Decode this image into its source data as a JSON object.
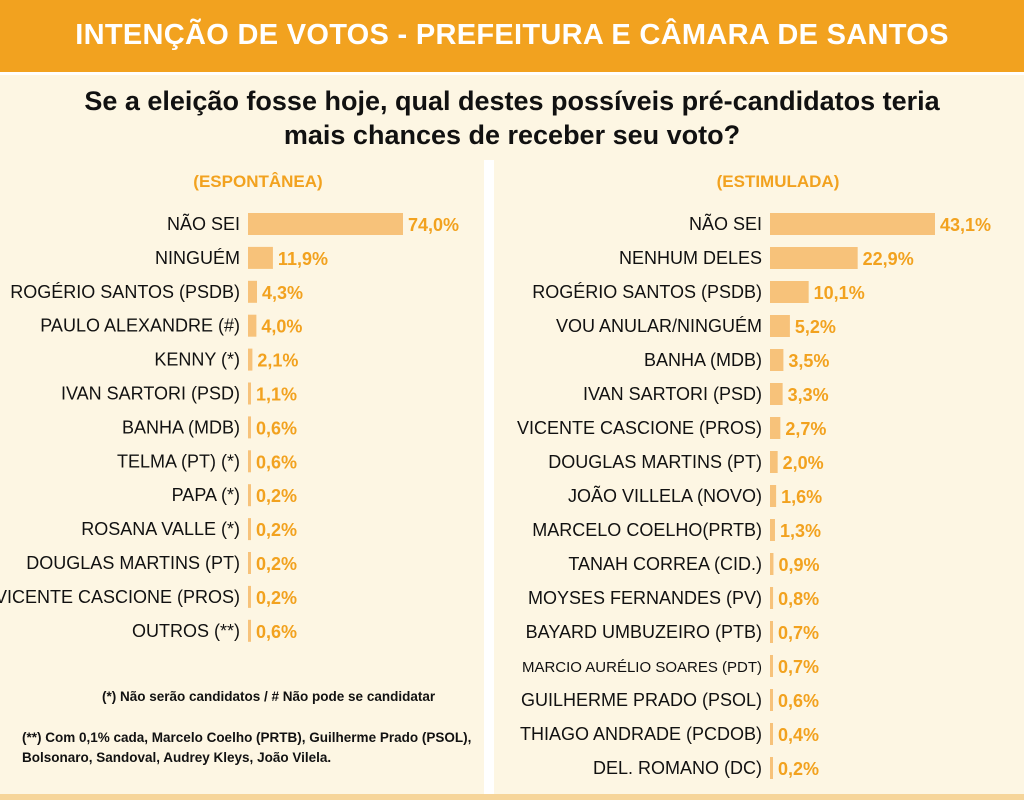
{
  "banner": {
    "title": "INTENÇÃO DE VOTOS - PREFEITURA E CÂMARA DE SANTOS"
  },
  "question": "Se a eleição fosse hoje, qual destes possíveis pré-candidatos teria mais chances de receber seu voto?",
  "notes": {
    "note1": "(*) Não serão candidatos  / # Não pode se candidatar",
    "note2": "(**) Com 0,1% cada, Marcelo Coelho (PRTB), Guilherme Prado (PSOL), Bolsonaro, Sandoval, Audrey Kleys, João Vilela."
  },
  "colors": {
    "banner": "#f2a21f",
    "bar": "#f7c27a",
    "value": "#f2a21f",
    "background": "#fdf6e3"
  },
  "chart_data": [
    {
      "type": "bar",
      "orientation": "horizontal",
      "title": "(ESPONTÂNEA)",
      "categories": [
        "NÃO SEI",
        "NINGUÉM",
        "ROGÉRIO SANTOS (PSDB)",
        "PAULO ALEXANDRE (#)",
        "KENNY (*)",
        "IVAN SARTORI (PSD)",
        "BANHA (MDB)",
        "TELMA (PT) (*)",
        "PAPA (*)",
        "ROSANA VALLE (*)",
        "DOUGLAS MARTINS (PT)",
        "VICENTE CASCIONE (PROS)",
        "OUTROS (**)"
      ],
      "values": [
        74.0,
        11.9,
        4.3,
        4.0,
        2.1,
        1.1,
        0.6,
        0.6,
        0.2,
        0.2,
        0.2,
        0.2,
        0.6
      ],
      "labels": [
        "74,0%",
        "11,9%",
        "4,3%",
        "4,0%",
        "2,1%",
        "1,1%",
        "0,6%",
        "0,6%",
        "0,2%",
        "0,2%",
        "0,2%",
        "0,2%",
        "0,6%"
      ],
      "legend": "none"
    },
    {
      "type": "bar",
      "orientation": "horizontal",
      "title": "(ESTIMULADA)",
      "categories": [
        "NÃO SEI",
        "NENHUM DELES",
        "ROGÉRIO SANTOS (PSDB)",
        "VOU ANULAR/NINGUÉM",
        "BANHA (MDB)",
        "IVAN SARTORI (PSD)",
        "VICENTE CASCIONE (PROS)",
        "DOUGLAS MARTINS (PT)",
        "JOÃO VILLELA (NOVO)",
        "MARCELO COELHO(PRTB)",
        "TANAH CORREA (CID.)",
        "MOYSES FERNANDES (PV)",
        "BAYARD UMBUZEIRO (PTB)",
        "MARCIO AURÉLIO SOARES (PDT)",
        "GUILHERME PRADO (PSOL)",
        "THIAGO ANDRADE (PCDOB)",
        "DEL. ROMANO (DC)"
      ],
      "values": [
        43.1,
        22.9,
        10.1,
        5.2,
        3.5,
        3.3,
        2.7,
        2.0,
        1.6,
        1.3,
        0.9,
        0.8,
        0.7,
        0.7,
        0.6,
        0.4,
        0.2
      ],
      "labels": [
        "43,1%",
        "22,9%",
        "10,1%",
        "5,2%",
        "3,5%",
        "3,3%",
        "2,7%",
        "2,0%",
        "1,6%",
        "1,3%",
        "0,9%",
        "0,8%",
        "0,7%",
        "0,7%",
        "0,6%",
        "0,4%",
        "0,2%"
      ],
      "legend": "none"
    }
  ]
}
